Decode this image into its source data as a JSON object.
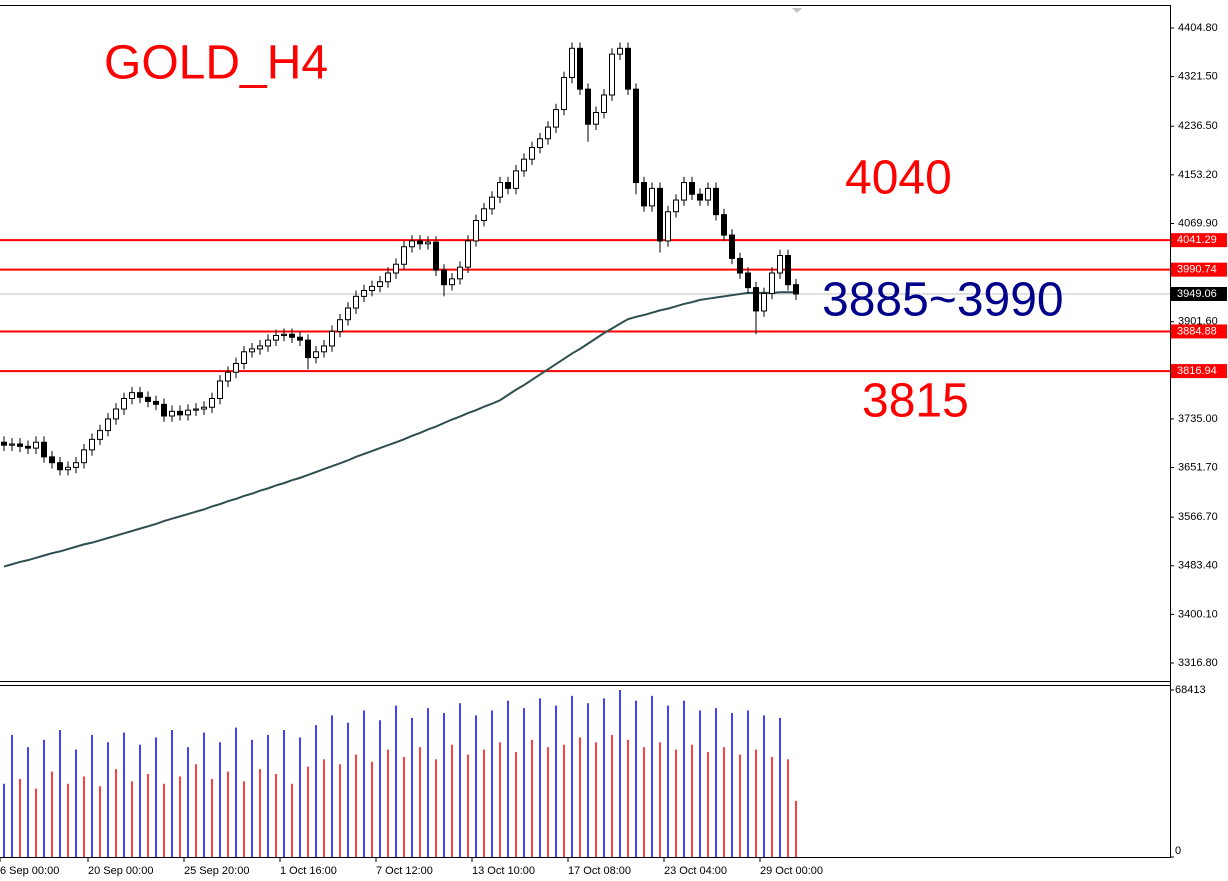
{
  "chart_data": {
    "type": "candlestick",
    "title": "GOLD_H4",
    "categories": [
      "6 Sep 00:00",
      null,
      null,
      null,
      null,
      null,
      null,
      null,
      null,
      null,
      null,
      "20 Sep 00:00",
      null,
      null,
      null,
      null,
      null,
      null,
      null,
      null,
      null,
      null,
      null,
      "25 Sep 20:00",
      null,
      null,
      null,
      null,
      null,
      null,
      null,
      null,
      null,
      null,
      null,
      "1 Oct 16:00",
      null,
      null,
      null,
      null,
      null,
      null,
      null,
      null,
      null,
      null,
      null,
      "7 Oct 12:00",
      null,
      null,
      null,
      null,
      null,
      null,
      null,
      null,
      null,
      null,
      null,
      "13 Oct 10:00",
      null,
      null,
      null,
      null,
      null,
      null,
      null,
      null,
      null,
      null,
      null,
      "17 Oct 08:00",
      null,
      null,
      null,
      null,
      null,
      null,
      null,
      null,
      null,
      null,
      null,
      "23 Oct 04:00",
      null,
      null,
      null,
      null,
      null,
      null,
      null,
      null,
      null,
      null,
      null,
      "29 Oct 00:00",
      null,
      null,
      null,
      null
    ],
    "open": [
      3695,
      3690,
      3692,
      3688,
      3685,
      3695,
      3670,
      3660,
      3648,
      3652,
      3660,
      3682,
      3700,
      3715,
      3735,
      3752,
      3770,
      3780,
      3772,
      3765,
      3760,
      3740,
      3748,
      3742,
      3750,
      3752,
      3755,
      3770,
      3800,
      3815,
      3830,
      3850,
      3855,
      3860,
      3870,
      3878,
      3880,
      3875,
      3870,
      3840,
      3850,
      3860,
      3885,
      3905,
      3925,
      3945,
      3955,
      3962,
      3970,
      3985,
      4000,
      4030,
      4040,
      4035,
      4038,
      3990,
      3965,
      3975,
      3995,
      4040,
      4075,
      4095,
      4115,
      4140,
      4130,
      4160,
      4180,
      4200,
      4215,
      4235,
      4265,
      4320,
      4370,
      4300,
      4240,
      4260,
      4290,
      4360,
      4370,
      4300,
      4140,
      4100,
      4130,
      4040,
      4090,
      4110,
      4140,
      4120,
      4110,
      4130,
      4085,
      4050,
      4010,
      3985,
      3960,
      3920,
      3950,
      3985,
      4015,
      3965
    ],
    "high": [
      3705,
      3702,
      3702,
      3698,
      3705,
      3705,
      3680,
      3670,
      3662,
      3670,
      3692,
      3710,
      3725,
      3745,
      3762,
      3780,
      3790,
      3790,
      3782,
      3775,
      3770,
      3758,
      3758,
      3760,
      3762,
      3765,
      3780,
      3810,
      3825,
      3840,
      3860,
      3865,
      3870,
      3880,
      3888,
      3890,
      3890,
      3885,
      3880,
      3860,
      3870,
      3895,
      3915,
      3935,
      3955,
      3965,
      3972,
      3980,
      3995,
      4010,
      4040,
      4050,
      4050,
      4048,
      4048,
      4000,
      3985,
      4005,
      4050,
      4085,
      4105,
      4125,
      4150,
      4150,
      4170,
      4190,
      4210,
      4225,
      4245,
      4275,
      4330,
      4380,
      4380,
      4310,
      4270,
      4300,
      4370,
      4380,
      4380,
      4310,
      4150,
      4140,
      4140,
      4100,
      4120,
      4150,
      4150,
      4130,
      4140,
      4140,
      4095,
      4060,
      4020,
      3995,
      3970,
      3960,
      3995,
      4025,
      4025,
      3975
    ],
    "low": [
      3680,
      3680,
      3678,
      3675,
      3675,
      3660,
      3650,
      3638,
      3638,
      3642,
      3650,
      3672,
      3690,
      3705,
      3725,
      3742,
      3760,
      3762,
      3755,
      3750,
      3730,
      3730,
      3732,
      3732,
      3740,
      3742,
      3745,
      3760,
      3790,
      3805,
      3820,
      3840,
      3845,
      3850,
      3860,
      3868,
      3865,
      3860,
      3820,
      3830,
      3840,
      3850,
      3875,
      3895,
      3915,
      3935,
      3945,
      3952,
      3960,
      3975,
      3990,
      4020,
      4025,
      4025,
      3980,
      3945,
      3955,
      3965,
      3985,
      4030,
      4065,
      4085,
      4105,
      4120,
      4120,
      4150,
      4170,
      4190,
      4205,
      4225,
      4255,
      4310,
      4290,
      4210,
      4230,
      4250,
      4280,
      4350,
      4290,
      4120,
      4090,
      4090,
      4020,
      4030,
      4080,
      4100,
      4110,
      4100,
      4100,
      4075,
      4040,
      4000,
      3975,
      3950,
      3880,
      3910,
      3940,
      3975,
      3955,
      3939
    ],
    "close": [
      3690,
      3692,
      3688,
      3685,
      3695,
      3670,
      3660,
      3648,
      3652,
      3660,
      3682,
      3700,
      3715,
      3735,
      3752,
      3770,
      3780,
      3772,
      3765,
      3760,
      3740,
      3748,
      3742,
      3750,
      3752,
      3755,
      3770,
      3800,
      3815,
      3830,
      3850,
      3855,
      3860,
      3870,
      3878,
      3880,
      3875,
      3870,
      3840,
      3850,
      3860,
      3885,
      3905,
      3925,
      3945,
      3955,
      3962,
      3970,
      3985,
      4000,
      4030,
      4040,
      4035,
      4038,
      3990,
      3965,
      3975,
      3995,
      4040,
      4075,
      4095,
      4115,
      4140,
      4130,
      4160,
      4180,
      4200,
      4215,
      4235,
      4265,
      4320,
      4370,
      4300,
      4240,
      4260,
      4290,
      4360,
      4370,
      4300,
      4140,
      4100,
      4130,
      4040,
      4090,
      4110,
      4140,
      4120,
      4110,
      4130,
      4085,
      4050,
      4010,
      3985,
      3960,
      3920,
      3950,
      3985,
      4015,
      3965,
      3949.06
    ],
    "ylim": [
      3316.8,
      4404.8
    ],
    "yticks": [
      {
        "value": 4404.8,
        "label": "4404.80"
      },
      {
        "value": 4321.5,
        "label": "4321.50"
      },
      {
        "value": 4236.5,
        "label": "4236.50"
      },
      {
        "value": 4153.2,
        "label": "4153.20"
      },
      {
        "value": 4069.9,
        "label": "4069.90"
      },
      {
        "value": 3901.6,
        "label": "3901.60"
      },
      {
        "value": 3735,
        "label": "3735.00"
      },
      {
        "value": 3651.7,
        "label": "3651.70"
      },
      {
        "value": 3566.7,
        "label": "3566.70"
      },
      {
        "value": 3483.4,
        "label": "3483.40"
      },
      {
        "value": 3400.1,
        "label": "3400.10"
      },
      {
        "value": 3316.8,
        "label": "3316.80"
      }
    ],
    "ma": {
      "color": "#2f4f4f",
      "values": [
        3482,
        3486,
        3490,
        3493,
        3497,
        3501,
        3505,
        3508,
        3512,
        3516,
        3520,
        3523,
        3527,
        3531,
        3535,
        3539,
        3543,
        3547,
        3551,
        3555,
        3560,
        3564,
        3568,
        3572,
        3576,
        3580,
        3585,
        3589,
        3594,
        3598,
        3603,
        3607,
        3612,
        3616,
        3621,
        3625,
        3630,
        3634,
        3639,
        3644,
        3649,
        3654,
        3659,
        3664,
        3670,
        3675,
        3680,
        3685,
        3690,
        3695,
        3700,
        3706,
        3711,
        3717,
        3722,
        3728,
        3734,
        3739,
        3745,
        3750,
        3756,
        3761,
        3767,
        3776,
        3785,
        3793,
        3802,
        3811,
        3820,
        3829,
        3838,
        3847,
        3855,
        3864,
        3873,
        3882,
        3890,
        3898,
        3906,
        3910,
        3913,
        3917,
        3921,
        3924,
        3928,
        3932,
        3935,
        3939,
        3941,
        3943,
        3945,
        3947,
        3949,
        3951,
        3951,
        3951,
        3951,
        3952,
        3952,
        3952
      ]
    },
    "levels": {
      "color": "#ff0000",
      "values": [
        4041.29,
        3990.74,
        3884.88,
        3816.94
      ]
    },
    "annotations": [
      "4040",
      "3885~3990",
      "3815"
    ],
    "volume": {
      "type": "bar",
      "up_color": "#0000ff",
      "down_color": "#ff0000",
      "ylim": [
        0,
        68413
      ],
      "yticks": [
        68413,
        0
      ],
      "values": [
        30000,
        50000,
        32000,
        45000,
        28000,
        48000,
        35000,
        52000,
        30000,
        44000,
        33000,
        50000,
        29000,
        47000,
        36000,
        51000,
        31000,
        46000,
        34000,
        49000,
        30000,
        52000,
        33000,
        45000,
        38000,
        51000,
        32000,
        47000,
        35000,
        53000,
        31000,
        48000,
        36000,
        50000,
        34000,
        52000,
        30000,
        49000,
        37000,
        54000,
        40000,
        58000,
        38000,
        55000,
        42000,
        60000,
        39000,
        56000,
        44000,
        62000,
        41000,
        57000,
        45000,
        61000,
        40000,
        59000,
        46000,
        63000,
        42000,
        58000,
        44000,
        60000,
        47000,
        64000,
        43000,
        61000,
        48000,
        65000,
        45000,
        62000,
        46000,
        66000,
        49000,
        63000,
        47000,
        65000,
        50000,
        68413,
        48000,
        64000,
        45000,
        66000,
        47000,
        62000,
        44000,
        64000,
        46000,
        60000,
        43000,
        61000,
        45000,
        59000,
        42000,
        60000,
        44000,
        58000,
        41000,
        57000,
        40000,
        23000
      ]
    }
  }
}
